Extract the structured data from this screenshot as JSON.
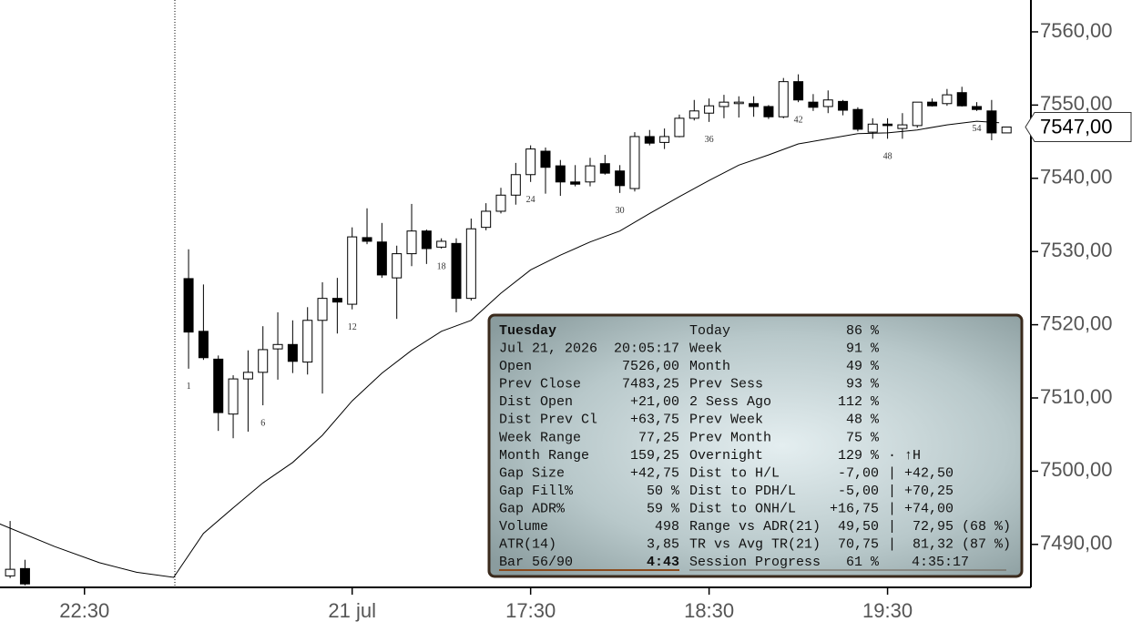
{
  "chart_data": {
    "type": "candlestick",
    "x": [
      -11,
      -10,
      1,
      2,
      3,
      4,
      5,
      6,
      7,
      8,
      9,
      10,
      11,
      12,
      13,
      14,
      15,
      16,
      17,
      18,
      19,
      20,
      21,
      22,
      23,
      24,
      25,
      26,
      27,
      28,
      29,
      30,
      31,
      32,
      33,
      34,
      35,
      36,
      37,
      38,
      39,
      40,
      41,
      42,
      43,
      44,
      45,
      46,
      47,
      48,
      49,
      50,
      51,
      52,
      53,
      54,
      55,
      56
    ],
    "open": [
      7485.7,
      7486.7,
      7526.3,
      7519.1,
      7515.3,
      7507.8,
      7512.6,
      7513.5,
      7516.7,
      7517.3,
      7514.9,
      7520.6,
      7523.6,
      7522.8,
      7531.9,
      7531.3,
      7526.4,
      7529.7,
      7532.8,
      7530.6,
      7531.1,
      7523.6,
      7533.3,
      7535.5,
      7537.7,
      7540.5,
      7543.7,
      7541.7,
      7539.5,
      7539.5,
      7542.0,
      7541.0,
      7538.6,
      7545.7,
      7544.9,
      7545.7,
      7548.2,
      7548.9,
      7549.8,
      7550.2,
      7550.2,
      7549.8,
      7548.4,
      7553.2,
      7550.4,
      7549.8,
      7550.5,
      7549.4,
      7546.3,
      7547.4,
      7546.8,
      7547.2,
      7550.4,
      7550.2,
      7551.7,
      7549.8,
      7549.2,
      7546.2
    ],
    "high": [
      7493.2,
      7487.9,
      7530.3,
      7525.5,
      7515.8,
      7513.1,
      7516.5,
      7519.8,
      7521.7,
      7520.6,
      7522.4,
      7525.8,
      7526.4,
      7533.3,
      7535.9,
      7533.9,
      7530.8,
      7536.5,
      7533.0,
      7531.8,
      7531.8,
      7534.5,
      7536.6,
      7538.7,
      7542.1,
      7544.5,
      7544.2,
      7542.5,
      7541.8,
      7542.8,
      7543.2,
      7541.8,
      7546.3,
      7546.6,
      7546.8,
      7548.7,
      7550.7,
      7550.9,
      7551.4,
      7551.2,
      7551.2,
      7550.0,
      7553.7,
      7554.2,
      7551.5,
      7552.0,
      7550.7,
      7549.7,
      7548.2,
      7548.2,
      7548.9,
      7550.4,
      7550.9,
      7552.2,
      7552.5,
      7550.4,
      7550.7,
      7547.0
    ],
    "low": [
      7485.4,
      7484.4,
      7514.0,
      7515.2,
      7505.5,
      7504.5,
      7505.4,
      7509.0,
      7512.5,
      7513.4,
      7513.2,
      7510.6,
      7518.8,
      7522.1,
      7531.0,
      7526.4,
      7520.8,
      7528.0,
      7528.3,
      7530.4,
      7521.7,
      7523.3,
      7532.9,
      7535.2,
      7536.4,
      7539.5,
      7537.9,
      7537.6,
      7538.9,
      7538.9,
      7540.5,
      7538.0,
      7538.2,
      7544.5,
      7544.0,
      7545.6,
      7547.9,
      7547.7,
      7548.2,
      7548.3,
      7548.4,
      7548.1,
      7548.2,
      7550.4,
      7549.2,
      7548.9,
      7548.6,
      7546.4,
      7545.4,
      7545.4,
      7545.4,
      7546.9,
      7549.8,
      7549.9,
      7549.8,
      7549.2,
      7545.2,
      7546.2
    ],
    "close": [
      7486.6,
      7484.6,
      7519.0,
      7515.5,
      7508.0,
      7512.6,
      7513.5,
      7516.6,
      7517.3,
      7515.0,
      7520.6,
      7523.6,
      7523.1,
      7532.0,
      7531.4,
      7526.8,
      7529.7,
      7532.8,
      7530.4,
      7531.4,
      7523.6,
      7533.1,
      7535.5,
      7537.7,
      7540.5,
      7544.0,
      7541.5,
      7539.5,
      7539.2,
      7541.7,
      7540.7,
      7539.0,
      7545.7,
      7544.8,
      7545.7,
      7548.2,
      7549.2,
      7549.9,
      7550.4,
      7550.4,
      7549.8,
      7548.4,
      7553.2,
      7550.7,
      7549.7,
      7550.7,
      7549.3,
      7546.7,
      7547.4,
      7547.2,
      7547.3,
      7550.4,
      7549.9,
      7551.4,
      7549.9,
      7549.4,
      7546.2,
      7547.0
    ],
    "up_color": "#ffffff",
    "down_color": "#000000",
    "moving_average": {
      "color": "#000000",
      "x": [
        -11.7,
        -8,
        -5,
        -2.5,
        0,
        2,
        4,
        6,
        8,
        10,
        12,
        14,
        16,
        18,
        20,
        22,
        24,
        26,
        28,
        30,
        32,
        34,
        36,
        38,
        40,
        42,
        44,
        46,
        48,
        50,
        52,
        54,
        55.5
      ],
      "values": [
        7492.8,
        7489.7,
        7487.5,
        7486.2,
        7485.5,
        7491.5,
        7495.0,
        7498.4,
        7501.2,
        7504.9,
        7509.6,
        7513.4,
        7516.5,
        7519.1,
        7520.6,
        7524.3,
        7527.5,
        7529.5,
        7531.3,
        7532.8,
        7535.2,
        7537.5,
        7539.7,
        7541.8,
        7543.2,
        7544.7,
        7545.4,
        7546.1,
        7546.2,
        7546.6,
        7547.3,
        7547.8,
        7547.6
      ]
    },
    "bar_numbers": [
      1,
      6,
      12,
      18,
      24,
      30,
      36,
      42,
      48,
      54
    ],
    "last_price": {
      "value": 7547,
      "label": "7547,00"
    },
    "xlim": [
      -11.68,
      57.64
    ],
    "xticks": [
      {
        "value": -6,
        "label": "22:30"
      },
      {
        "value": 12,
        "label": "21 jul"
      },
      {
        "value": 24,
        "label": "17:30"
      },
      {
        "value": 36,
        "label": "18:30"
      },
      {
        "value": 48,
        "label": "19:30"
      }
    ],
    "ylim": [
      7484.13,
      7564.35
    ],
    "yticks": [
      {
        "value": 7490,
        "label": "7490,00"
      },
      {
        "value": 7500,
        "label": "7500,00"
      },
      {
        "value": 7510,
        "label": "7510,00"
      },
      {
        "value": 7520,
        "label": "7520,00"
      },
      {
        "value": 7530,
        "label": "7530,00"
      },
      {
        "value": 7540,
        "label": "7540,00"
      },
      {
        "value": 7550,
        "label": "7550,00"
      },
      {
        "value": 7560,
        "label": "7560,00"
      }
    ]
  },
  "info_panel": {
    "rows": [
      {
        "l": "Tuesday",
        "r": "Today",
        "rv": "86 %"
      },
      {
        "l": "Jul 21, 2026",
        "lv": "20:05:17",
        "r": "Week",
        "rv": "91 %"
      },
      {
        "l": "Open",
        "lv": "7526,00",
        "r": "Month",
        "rv": "49 %"
      },
      {
        "l": "Prev Close",
        "lv": "7483,25",
        "r": "Prev Sess",
        "rv": "93 %"
      },
      {
        "l": "Dist Open",
        "lv": "+21,00",
        "r": "2 Sess Ago",
        "rv": "112 %"
      },
      {
        "l": "Dist Prev Cl",
        "lv": "+63,75",
        "r": "Prev Week",
        "rv": "48 %"
      },
      {
        "l": "Week Range",
        "lv": "77,25",
        "r": "Prev Month",
        "rv": "75 %"
      },
      {
        "l": "Month Range",
        "lv": "159,25",
        "r": "Overnight",
        "rv": "129 %",
        "rx": "· ↑H"
      },
      {
        "l": "Gap Size",
        "lv": "+42,75",
        "r": "Dist to H/L",
        "rv": "-7,00",
        "rx": "| +42,50"
      },
      {
        "l": "Gap Fill%",
        "lv": "50 %",
        "r": "Dist to PDH/L",
        "rv": "-5,00",
        "rx": "| +70,25"
      },
      {
        "l": "Gap ADR%",
        "lv": "59 %",
        "r": "Dist to ONH/L",
        "rv": "+16,75",
        "rx": "| +74,00"
      },
      {
        "l": "Volume",
        "lv": "498",
        "r": "Range vs ADR(21)",
        "rv": "49,50",
        "rx": "|  72,95 (68 %)"
      },
      {
        "l": "ATR(14)",
        "lv": "3,85",
        "r": "TR vs Avg TR(21)",
        "rv": "70,75",
        "rx": "|  81,32 (87 %)"
      },
      {
        "l": "Bar 56/90",
        "lv": "4:43",
        "r": "Session Progress",
        "rv": "61 %",
        "rx": "4:35:17"
      }
    ]
  }
}
